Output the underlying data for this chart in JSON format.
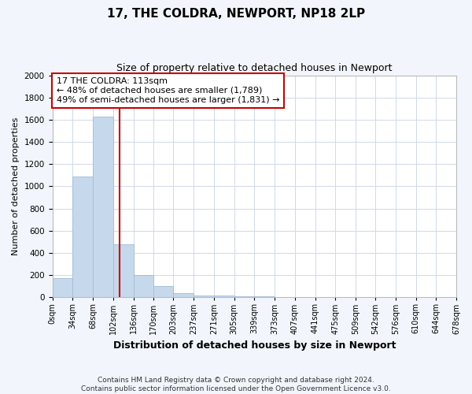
{
  "title": "17, THE COLDRA, NEWPORT, NP18 2LP",
  "subtitle": "Size of property relative to detached houses in Newport",
  "xlabel": "Distribution of detached houses by size in Newport",
  "ylabel": "Number of detached properties",
  "bar_color": "#c6d9ec",
  "bar_edge_color": "#a0bcd8",
  "annotation_box_text": "17 THE COLDRA: 113sqm\n← 48% of detached houses are smaller (1,789)\n49% of semi-detached houses are larger (1,831) →",
  "vline_x": 113,
  "vline_color": "#cc0000",
  "footnote1": "Contains HM Land Registry data © Crown copyright and database right 2024.",
  "footnote2": "Contains public sector information licensed under the Open Government Licence v3.0.",
  "bin_edges": [
    0,
    34,
    68,
    102,
    136,
    170,
    203,
    237,
    271,
    305,
    339,
    373,
    407,
    441,
    475,
    509,
    542,
    576,
    610,
    644,
    678
  ],
  "bin_counts": [
    170,
    1090,
    1630,
    480,
    200,
    100,
    35,
    20,
    15,
    10,
    8,
    5,
    0,
    0,
    0,
    0,
    0,
    0,
    0,
    0
  ],
  "ylim": [
    0,
    2000
  ],
  "xlim": [
    0,
    678
  ],
  "background_color": "#f2f5fb",
  "plot_bg_color": "#ffffff",
  "grid_color": "#d0d8e8",
  "title_fontsize": 11,
  "subtitle_fontsize": 9,
  "xlabel_fontsize": 9,
  "ylabel_fontsize": 8,
  "tick_fontsize": 7,
  "footnote_fontsize": 6.5
}
